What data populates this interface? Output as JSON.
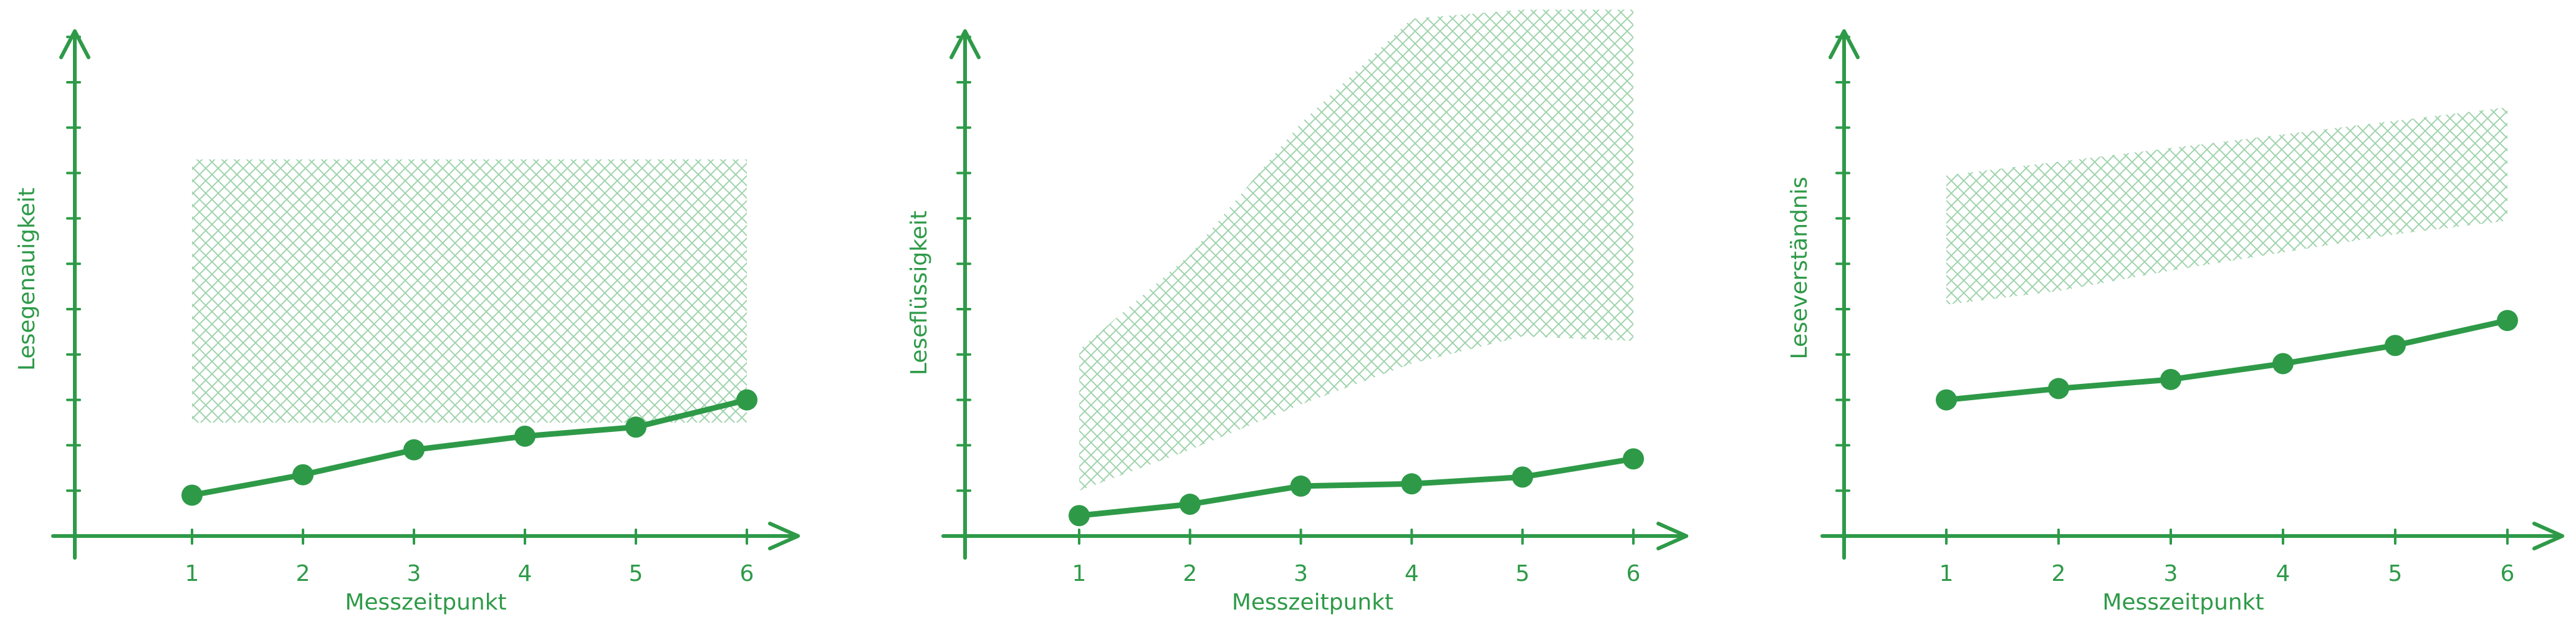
{
  "colors": {
    "accent": "#2e9a48",
    "band": "#9fd3ac",
    "background": "#ffffff"
  },
  "chart_data": [
    {
      "type": "line",
      "xlabel": "Messzeitpunkt",
      "ylabel": "Lesegenauigkeit",
      "x": [
        1,
        2,
        3,
        4,
        5,
        6
      ],
      "xlim": [
        0,
        6.5
      ],
      "ylim": [
        0,
        11.5
      ],
      "y_ticks": [
        1,
        2,
        3,
        4,
        5,
        6,
        7,
        8,
        9,
        10,
        11
      ],
      "grid": false,
      "series": [
        {
          "values": [
            0.9,
            1.35,
            1.9,
            2.2,
            2.4,
            3.0
          ]
        }
      ],
      "band": {
        "lower": [
          2.5,
          2.5,
          2.5,
          2.5,
          2.5,
          2.5
        ],
        "upper": [
          8.3,
          8.3,
          8.3,
          8.3,
          8.3,
          8.3
        ]
      }
    },
    {
      "type": "line",
      "xlabel": "Messzeitpunkt",
      "ylabel": "Leseflüssigkeit",
      "x": [
        1,
        2,
        3,
        4,
        5,
        6
      ],
      "xlim": [
        0,
        6.5
      ],
      "ylim": [
        0,
        11.5
      ],
      "y_ticks": [
        1,
        2,
        3,
        4,
        5,
        6,
        7,
        8,
        9,
        10,
        11
      ],
      "grid": false,
      "series": [
        {
          "values": [
            0.45,
            0.7,
            1.1,
            1.15,
            1.3,
            1.7
          ]
        }
      ],
      "band": {
        "lower": [
          1.0,
          1.9,
          2.9,
          3.8,
          4.4,
          4.3
        ],
        "upper": [
          4.1,
          6.2,
          9.1,
          11.4,
          11.6,
          11.6
        ]
      }
    },
    {
      "type": "line",
      "xlabel": "Messzeitpunkt",
      "ylabel": "Leseverständnis",
      "x": [
        1,
        2,
        3,
        4,
        5,
        6
      ],
      "xlim": [
        0,
        6.5
      ],
      "ylim": [
        0,
        11.5
      ],
      "y_ticks": [
        1,
        2,
        3,
        4,
        5,
        6,
        7,
        8,
        9,
        10,
        11
      ],
      "grid": false,
      "series": [
        {
          "values": [
            3.0,
            3.25,
            3.45,
            3.8,
            4.2,
            4.75
          ]
        }
      ],
      "band": {
        "lower": [
          5.1,
          5.4,
          5.85,
          6.25,
          6.65,
          6.95
        ],
        "upper": [
          7.95,
          8.25,
          8.55,
          8.85,
          9.15,
          9.45
        ]
      }
    }
  ]
}
